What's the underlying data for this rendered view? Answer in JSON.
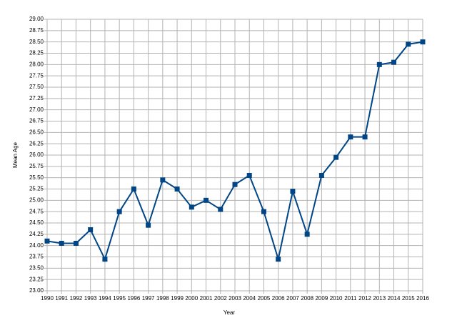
{
  "chart_data": {
    "type": "line",
    "x_label": "Year",
    "y_label": "Mean Age",
    "categories": [
      "1990",
      "1991",
      "1992",
      "1993",
      "1994",
      "1995",
      "1996",
      "1997",
      "1998",
      "1999",
      "2000",
      "2001",
      "2002",
      "2003",
      "2004",
      "2005",
      "2006",
      "2007",
      "2008",
      "2009",
      "2010",
      "2011",
      "2012",
      "2013",
      "2014",
      "2015",
      "2016"
    ],
    "values": [
      24.1,
      24.05,
      24.05,
      24.35,
      23.7,
      24.75,
      25.25,
      24.45,
      25.45,
      25.25,
      24.85,
      25.0,
      24.8,
      25.35,
      25.55,
      24.75,
      23.7,
      25.2,
      24.25,
      25.55,
      25.95,
      26.4,
      26.4,
      28.0,
      28.05,
      28.45,
      28.5
    ],
    "color": "#004586",
    "ylim": [
      23,
      29
    ],
    "yticks": [
      {
        "value": 23,
        "label": "23.00"
      },
      {
        "value": 23.25,
        "label": "23.25"
      },
      {
        "value": 23.5,
        "label": "23.50"
      },
      {
        "value": 23.75,
        "label": "23.75"
      },
      {
        "value": 24,
        "label": "24.00"
      },
      {
        "value": 24.25,
        "label": "24.25"
      },
      {
        "value": 24.5,
        "label": "24.50"
      },
      {
        "value": 24.75,
        "label": "24.75"
      },
      {
        "value": 25,
        "label": "25.00"
      },
      {
        "value": 25.25,
        "label": "25.25"
      },
      {
        "value": 25.5,
        "label": "25.50"
      },
      {
        "value": 25.75,
        "label": "25.75"
      },
      {
        "value": 26,
        "label": "26.00"
      },
      {
        "value": 26.25,
        "label": "26.25"
      },
      {
        "value": 26.5,
        "label": "26.50"
      },
      {
        "value": 26.75,
        "label": "26.75"
      },
      {
        "value": 27,
        "label": "27.00"
      },
      {
        "value": 27.25,
        "label": "27.25"
      },
      {
        "value": 27.5,
        "label": "27.50"
      },
      {
        "value": 27.75,
        "label": "27.75"
      },
      {
        "value": 28,
        "label": "28.00"
      },
      {
        "value": 28.25,
        "label": "28.25"
      },
      {
        "value": 28.5,
        "label": "28.50"
      },
      {
        "value": 28.75,
        "label": "28.75"
      },
      {
        "value": 29,
        "label": "29.00"
      }
    ],
    "grid": true
  }
}
